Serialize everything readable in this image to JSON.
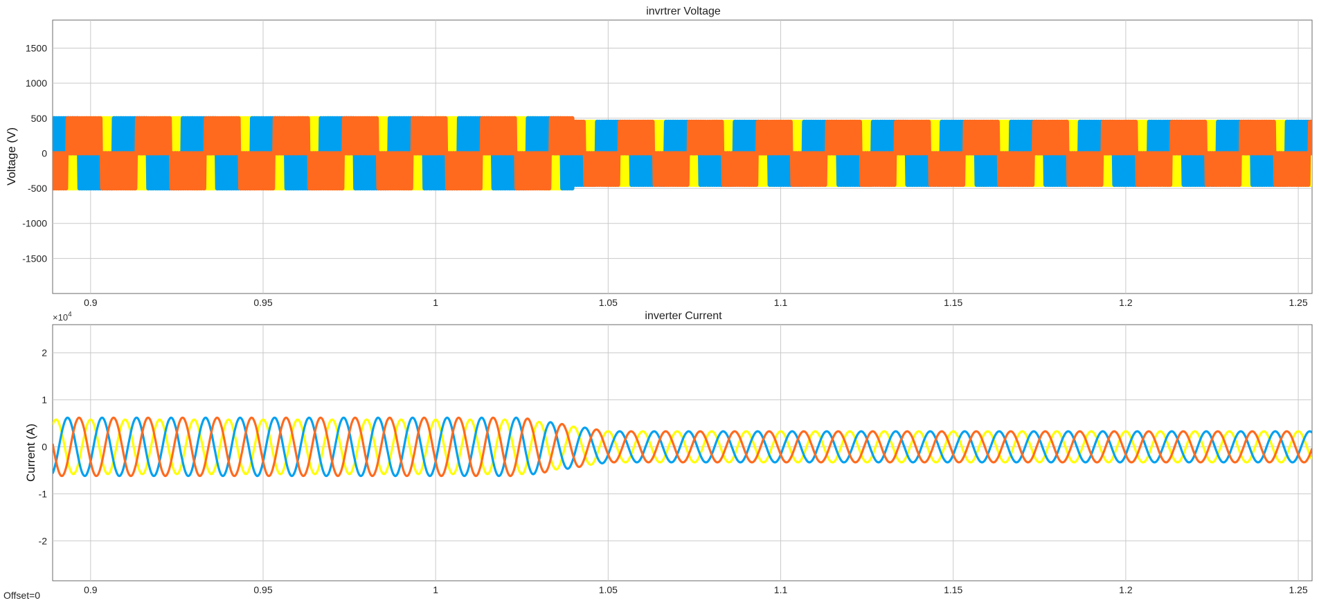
{
  "footer": {
    "offset_text": "Offset=0"
  },
  "chart_data": [
    {
      "type": "line",
      "title": "invrtrer Voltage",
      "ylabel": "Voltage (V)",
      "xlabel": "",
      "xlim": [
        0.889,
        1.254
      ],
      "ylim": [
        -2000,
        1900
      ],
      "xticks": [
        0.9,
        0.95,
        1,
        1.05,
        1.1,
        1.15,
        1.2,
        1.25
      ],
      "xtick_labels": [
        "0.9",
        "0.95",
        "1",
        "1.05",
        "1.1",
        "1.15",
        "1.2",
        "1.25"
      ],
      "yticks": [
        1500,
        1000,
        500,
        0,
        -500,
        -1000,
        -1500
      ],
      "ytick_labels": [
        "1500",
        "1000",
        "500",
        "0",
        "-500",
        "-1000",
        "-1500"
      ],
      "grid": true,
      "waveform": "six-step PWM line voltage, 3 phases",
      "fundamental_hz": 50,
      "transition_time": 1.04,
      "series": [
        {
          "color": "#ffff00",
          "phase_deg": 0,
          "amplitude_before": 500,
          "amplitude_after": 450
        },
        {
          "color": "#00a0f0",
          "phase_deg": -120,
          "amplitude_before": 500,
          "amplitude_after": 450
        },
        {
          "color": "#ff6a1e",
          "phase_deg": 120,
          "amplitude_before": 500,
          "amplitude_after": 450
        }
      ]
    },
    {
      "type": "line",
      "title": "inverter Current",
      "ylabel": "Current (A)",
      "xlabel": "",
      "y_exponent_label": "×10",
      "y_exponent_power": "4",
      "xlim": [
        0.889,
        1.254
      ],
      "ylim": [
        -2.85,
        2.6
      ],
      "y_scale": 10000,
      "xticks": [
        0.9,
        0.95,
        1,
        1.05,
        1.1,
        1.15,
        1.2,
        1.25
      ],
      "xtick_labels": [
        "0.9",
        "0.95",
        "1",
        "1.05",
        "1.1",
        "1.15",
        "1.2",
        "1.25"
      ],
      "yticks": [
        2,
        1,
        0,
        -1,
        -2
      ],
      "ytick_labels": [
        "2",
        "1",
        "0",
        "-1",
        "-2"
      ],
      "grid": true,
      "frequency_hz": 100,
      "transition_start": 1.025,
      "transition_end": 1.05,
      "series": [
        {
          "color": "#ffff00",
          "phase_deg": 90,
          "amplitude_before": 0.58,
          "amplitude_after": 0.33
        },
        {
          "color": "#00a0f0",
          "phase_deg": -30,
          "amplitude_before": 0.62,
          "amplitude_after": 0.33
        },
        {
          "color": "#ff6a1e",
          "phase_deg": -150,
          "amplitude_before": 0.62,
          "amplitude_after": 0.33
        }
      ]
    }
  ]
}
